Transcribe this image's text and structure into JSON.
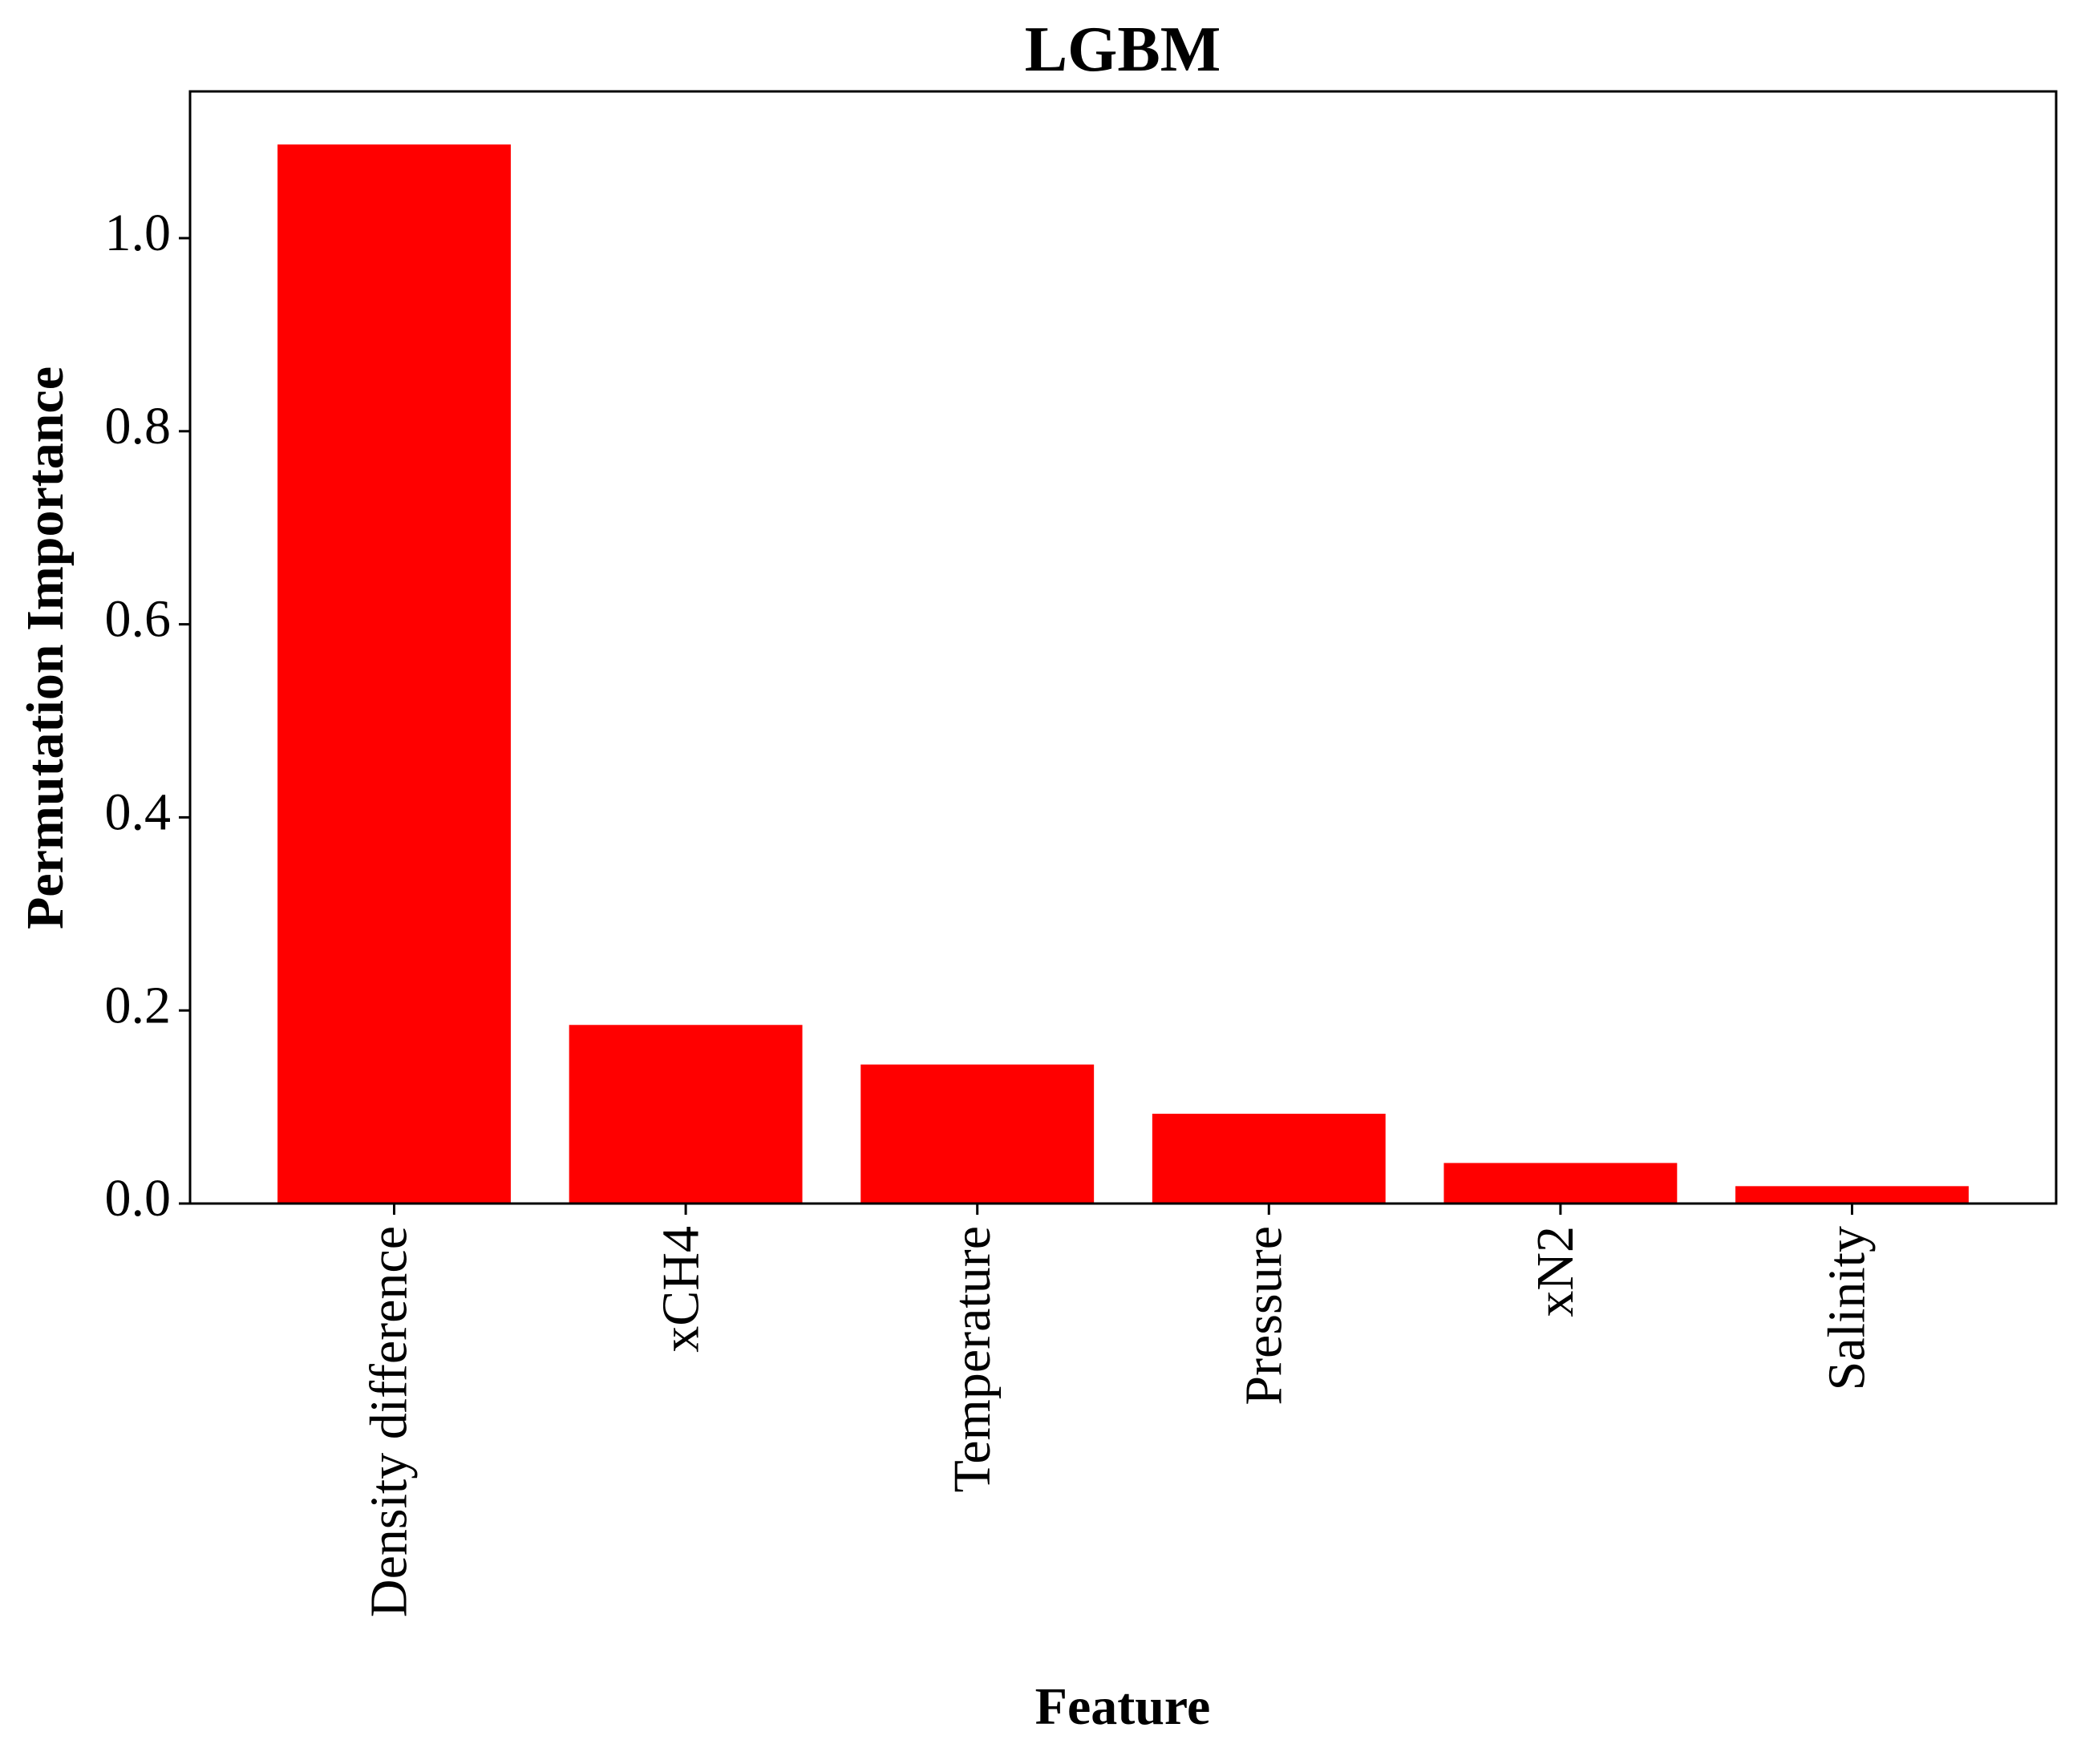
{
  "chart_data": {
    "type": "bar",
    "title": "LGBM",
    "xlabel": "Feature",
    "ylabel": "Permutation Importance",
    "categories": [
      "Density difference",
      "xCH4",
      "Temperature",
      "Pressure",
      "xN2",
      "Salinity"
    ],
    "values": [
      1.097,
      0.185,
      0.144,
      0.093,
      0.042,
      0.018
    ],
    "ylim": [
      0,
      1.152
    ],
    "yticks": [
      {
        "value": 0.0,
        "label": "0.0"
      },
      {
        "value": 0.2,
        "label": "0.2"
      },
      {
        "value": 0.4,
        "label": "0.4"
      },
      {
        "value": 0.6,
        "label": "0.6"
      },
      {
        "value": 0.8,
        "label": "0.8"
      },
      {
        "value": 1.0,
        "label": "1.0"
      }
    ],
    "grid": false,
    "legend": "none",
    "bar_color": "#ff0000",
    "axis_color": "#000000"
  }
}
